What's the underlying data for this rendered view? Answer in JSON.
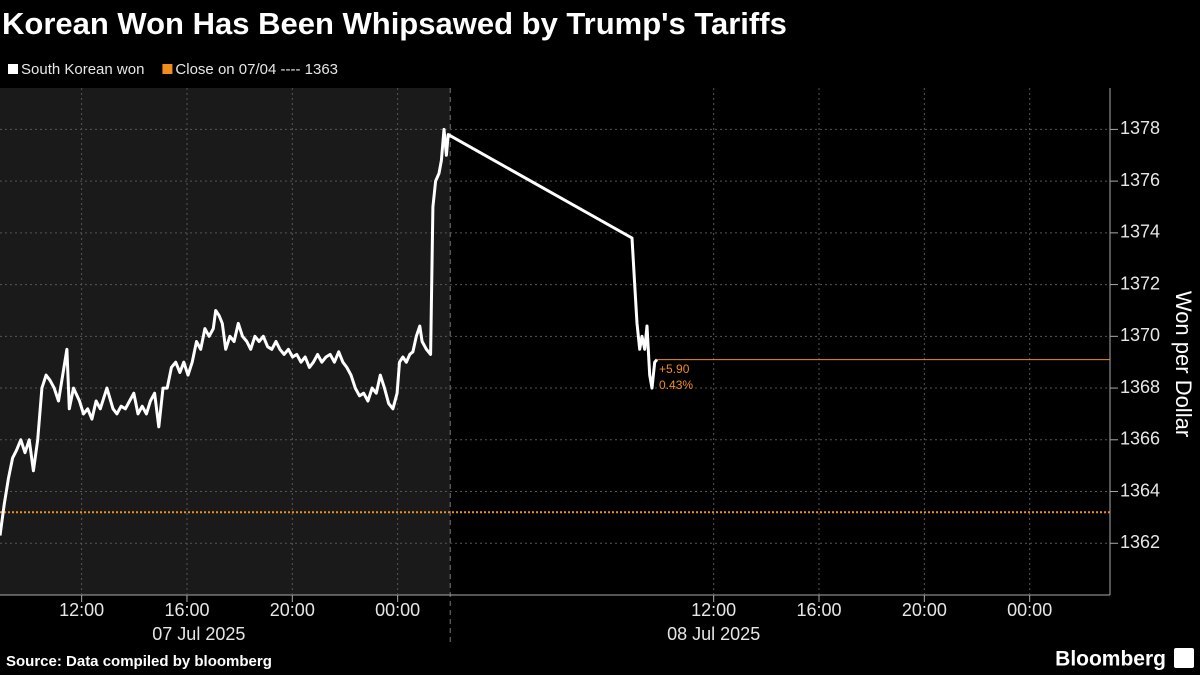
{
  "chart_data": {
    "type": "line",
    "title": "Korean Won Has Been Whipsawed by Trump's Tariffs",
    "y_label": "Won per Dollar",
    "source": "Source: Data compiled by bloomberg",
    "brand": "Bloomberg",
    "xlim": [
      8.9,
      51.05
    ],
    "xticks": [
      {
        "value": 12,
        "label": "12:00"
      },
      {
        "value": 16,
        "label": "16:00"
      },
      {
        "value": 20,
        "label": "20:00"
      },
      {
        "value": 24,
        "label": "00:00"
      },
      {
        "value": 36,
        "label": "12:00"
      },
      {
        "value": 40,
        "label": "16:00"
      },
      {
        "value": 44,
        "label": "20:00"
      },
      {
        "value": 48,
        "label": "00:00"
      }
    ],
    "x_dates": [
      "07 Jul 2025",
      "08 Jul 2025"
    ],
    "ylim": [
      1360,
      1379.6
    ],
    "yticks": [
      1362,
      1364,
      1366,
      1368,
      1370,
      1372,
      1374,
      1376,
      1378
    ],
    "grid": true,
    "series": [
      {
        "name": "South Korean won",
        "color": "#ffffff",
        "x": [
          8.9,
          9.06,
          9.22,
          9.38,
          9.53,
          9.69,
          9.85,
          10.01,
          10.17,
          10.33,
          10.49,
          10.65,
          10.8,
          10.96,
          11.12,
          11.28,
          11.44,
          11.53,
          11.69,
          11.92,
          12.07,
          12.23,
          12.39,
          12.55,
          12.71,
          12.96,
          13.19,
          13.34,
          13.5,
          13.66,
          13.82,
          13.98,
          14.14,
          14.3,
          14.46,
          14.61,
          14.77,
          14.93,
          15.09,
          15.25,
          15.41,
          15.57,
          15.73,
          15.88,
          16.04,
          16.2,
          16.36,
          16.52,
          16.68,
          16.84,
          17.0,
          17.09,
          17.22,
          17.34,
          17.47,
          17.63,
          17.79,
          17.95,
          18.11,
          18.27,
          18.42,
          18.58,
          18.74,
          18.9,
          19.06,
          19.22,
          19.38,
          19.53,
          19.69,
          19.85,
          20.01,
          20.17,
          20.33,
          20.49,
          20.65,
          20.8,
          20.96,
          21.12,
          21.28,
          21.44,
          21.6,
          21.76,
          21.92,
          22.07,
          22.23,
          22.39,
          22.55,
          22.71,
          22.87,
          23.03,
          23.19,
          23.34,
          23.5,
          23.66,
          23.82,
          23.98,
          24.07,
          24.2,
          24.33,
          24.46,
          24.58,
          24.71,
          24.84,
          24.93,
          25.09,
          25.25,
          25.34,
          25.44,
          25.57,
          25.66,
          25.76,
          25.85,
          25.92,
          32.9,
          33.0,
          33.09,
          33.19,
          33.28,
          33.38,
          33.47,
          33.57,
          33.66,
          33.76,
          33.85
        ],
        "values": [
          1362.3,
          1363.5,
          1364.5,
          1365.3,
          1365.6,
          1366.0,
          1365.5,
          1366.0,
          1364.8,
          1366.0,
          1368.0,
          1368.5,
          1368.3,
          1368.0,
          1367.5,
          1368.5,
          1369.5,
          1367.2,
          1368.0,
          1367.5,
          1367.0,
          1367.2,
          1366.8,
          1367.5,
          1367.2,
          1368.0,
          1367.2,
          1367.0,
          1367.3,
          1367.2,
          1367.5,
          1367.8,
          1367.0,
          1367.3,
          1367.0,
          1367.5,
          1367.8,
          1366.5,
          1368.0,
          1368.0,
          1368.8,
          1369.0,
          1368.6,
          1369.0,
          1368.5,
          1369.0,
          1369.8,
          1369.5,
          1370.3,
          1370.0,
          1370.3,
          1371.0,
          1370.8,
          1370.5,
          1369.5,
          1370.0,
          1369.8,
          1370.5,
          1370.0,
          1369.8,
          1369.5,
          1370.0,
          1369.8,
          1370.0,
          1369.6,
          1369.5,
          1369.8,
          1369.5,
          1369.3,
          1369.5,
          1369.2,
          1369.3,
          1369.0,
          1369.2,
          1368.8,
          1369.0,
          1369.3,
          1369.0,
          1369.2,
          1369.3,
          1369.0,
          1369.4,
          1369.0,
          1368.8,
          1368.5,
          1368.0,
          1367.7,
          1367.8,
          1367.5,
          1368.0,
          1367.8,
          1368.5,
          1368.0,
          1367.4,
          1367.2,
          1367.8,
          1369.0,
          1369.2,
          1369.0,
          1369.3,
          1369.4,
          1370.0,
          1370.4,
          1369.8,
          1369.5,
          1369.3,
          1375.0,
          1376.0,
          1376.3,
          1376.8,
          1378.0,
          1377.0,
          1377.8,
          1373.8,
          1372.0,
          1370.5,
          1369.5,
          1370.0,
          1369.5,
          1370.4,
          1368.5,
          1368.0,
          1369.0,
          1369.1
        ]
      }
    ],
    "reference_line": {
      "name": "Close on 07/04 ---- 1363",
      "value": 1363.2,
      "color": "#f28c1f"
    },
    "annotations": [
      "+5.90",
      "0.43%"
    ]
  }
}
